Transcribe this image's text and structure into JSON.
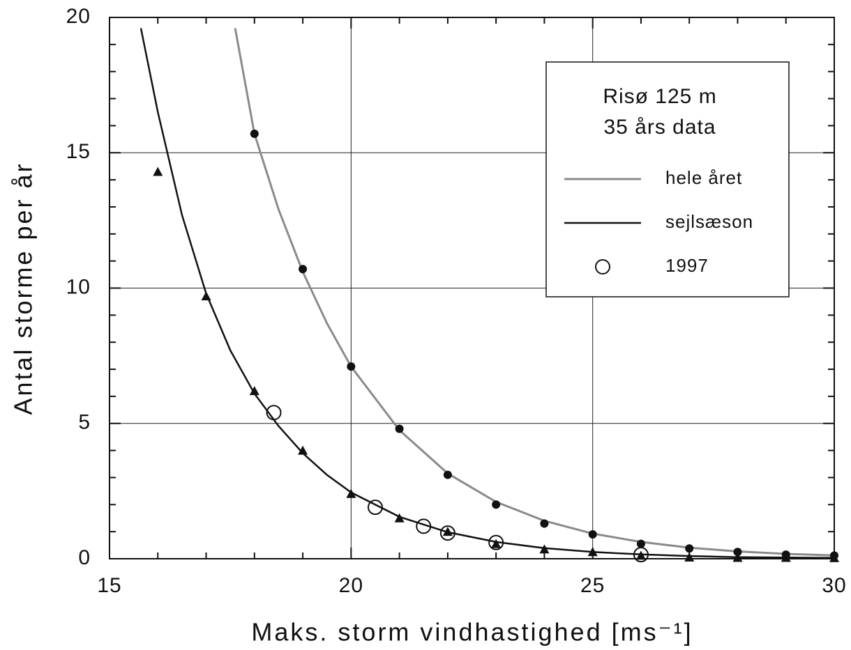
{
  "chart_data": {
    "type": "line",
    "xlabel": "Maks. storm vindhastighed [ms⁻¹]",
    "ylabel": "Antal storme per år",
    "xlim": [
      15,
      30
    ],
    "xticks": [
      15,
      20,
      25,
      30
    ],
    "ylim": [
      0,
      20
    ],
    "yticks": [
      0,
      5,
      10,
      15,
      20
    ],
    "grid": true,
    "legend_title": [
      "Risø 125 m",
      "35 års data"
    ],
    "legend_position": "upper right",
    "series": [
      {
        "name": "hele året",
        "color": "#8a8a8a",
        "x": [
          17.6,
          18,
          18.5,
          19,
          19.5,
          20,
          21,
          22,
          23,
          24,
          25,
          26,
          27,
          28,
          29,
          30
        ],
        "values": [
          19.6,
          15.7,
          12.9,
          10.6,
          8.7,
          7.1,
          4.75,
          3.15,
          2.1,
          1.4,
          0.93,
          0.62,
          0.41,
          0.27,
          0.18,
          0.12
        ],
        "markers": {
          "marker": "dot",
          "color": "#111111",
          "x": [
            18,
            19,
            20,
            21,
            22,
            23,
            24,
            25,
            26,
            27,
            28,
            29,
            30
          ],
          "values": [
            15.7,
            10.7,
            7.1,
            4.8,
            3.1,
            2.0,
            1.3,
            0.9,
            0.55,
            0.38,
            0.25,
            0.15,
            0.12
          ]
        }
      },
      {
        "name": "sejlsæson",
        "color": "#111111",
        "x": [
          15.65,
          16,
          16.5,
          17,
          17.5,
          18,
          18.5,
          19,
          19.5,
          20,
          21,
          22,
          23,
          24,
          25,
          26,
          27,
          28,
          30
        ],
        "values": [
          19.6,
          16.5,
          12.7,
          9.8,
          7.7,
          6.1,
          4.9,
          3.9,
          3.1,
          2.45,
          1.55,
          0.98,
          0.62,
          0.39,
          0.25,
          0.16,
          0.1,
          0.06,
          0.03
        ],
        "markers": {
          "marker": "triangle",
          "color": "#111111",
          "x": [
            16,
            17,
            18,
            19,
            20,
            21,
            22,
            23,
            24,
            25,
            26,
            27,
            28,
            29,
            30
          ],
          "values": [
            14.3,
            9.7,
            6.2,
            4.0,
            2.4,
            1.5,
            1.0,
            0.55,
            0.35,
            0.25,
            0.12,
            0.05,
            0.04,
            0.04,
            0.03
          ]
        }
      },
      {
        "name": "1997",
        "color": "#111111",
        "marker": "circle",
        "x": [
          18.4,
          20.5,
          21.5,
          22,
          23,
          26
        ],
        "values": [
          5.4,
          1.9,
          1.2,
          0.95,
          0.6,
          0.15
        ]
      }
    ]
  }
}
